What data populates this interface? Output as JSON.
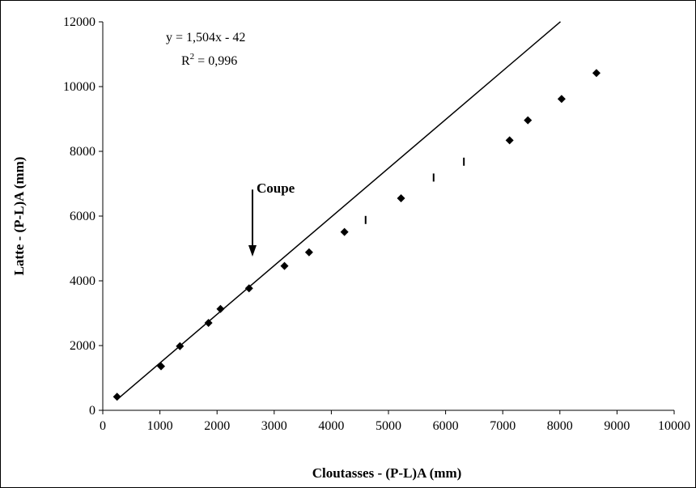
{
  "chart_data": {
    "type": "scatter",
    "xlabel": "Cloutasses - (P-L)A (mm)",
    "ylabel": "Latte - (P-L)A (mm)",
    "xlim": [
      0,
      10000
    ],
    "ylim": [
      0,
      12000
    ],
    "x_ticks": [
      "0",
      "1000",
      "2000",
      "3000",
      "4000",
      "5000",
      "6000",
      "7000",
      "8000",
      "9000",
      "10000"
    ],
    "y_ticks": [
      "0",
      "2000",
      "4000",
      "6000",
      "8000",
      "10000",
      "12000"
    ],
    "grid": false,
    "series": [
      {
        "marker": "diamond",
        "points": [
          {
            "x": 250,
            "y": 420
          },
          {
            "x": 1020,
            "y": 1360
          },
          {
            "x": 1350,
            "y": 1980
          },
          {
            "x": 1850,
            "y": 2700
          },
          {
            "x": 2060,
            "y": 3130
          },
          {
            "x": 2560,
            "y": 3770
          },
          {
            "x": 3180,
            "y": 4460
          },
          {
            "x": 3610,
            "y": 4880
          },
          {
            "x": 4230,
            "y": 5510
          },
          {
            "x": 5220,
            "y": 6550
          },
          {
            "x": 7120,
            "y": 8340
          },
          {
            "x": 7440,
            "y": 8960
          },
          {
            "x": 8030,
            "y": 9620
          },
          {
            "x": 8640,
            "y": 10420
          }
        ]
      },
      {
        "marker": "vertical-tick",
        "points": [
          {
            "x": 4600,
            "y": 5880
          },
          {
            "x": 5790,
            "y": 7190
          },
          {
            "x": 6320,
            "y": 7680
          }
        ]
      }
    ],
    "trendline": {
      "slope": 1.504,
      "intercept": -42,
      "x_from": 250,
      "x_to": 8010,
      "equation": "y = 1,504x - 42",
      "r2_prefix": "R",
      "r2_exponent": "2",
      "r2_value": " = 0,996"
    },
    "annotation": {
      "text": "Coupe",
      "arrow": "down",
      "x": 2620,
      "y_from": 6820,
      "y_to": 4750
    }
  }
}
